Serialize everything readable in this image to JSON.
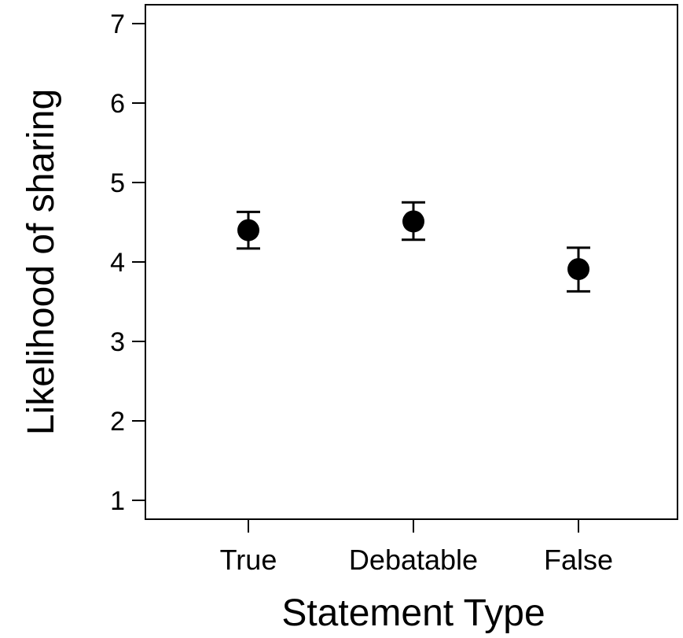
{
  "chart_data": {
    "type": "scatter",
    "title": "",
    "xlabel": "Statement Type",
    "ylabel": "Likelihood of sharing",
    "categories": [
      "True",
      "Debatable",
      "False"
    ],
    "series": [
      {
        "values": [
          4.4,
          4.51,
          3.91
        ],
        "error_low": [
          4.17,
          4.28,
          3.63
        ],
        "error_high": [
          4.63,
          4.75,
          4.18
        ]
      }
    ],
    "ylim": [
      1,
      7
    ],
    "yticks": [
      "1",
      "2",
      "3",
      "4",
      "5",
      "6",
      "7"
    ],
    "grid": false,
    "legend": "none",
    "colors": {
      "point": "#000000",
      "axis": "#000000",
      "background": "#ffffff"
    }
  }
}
